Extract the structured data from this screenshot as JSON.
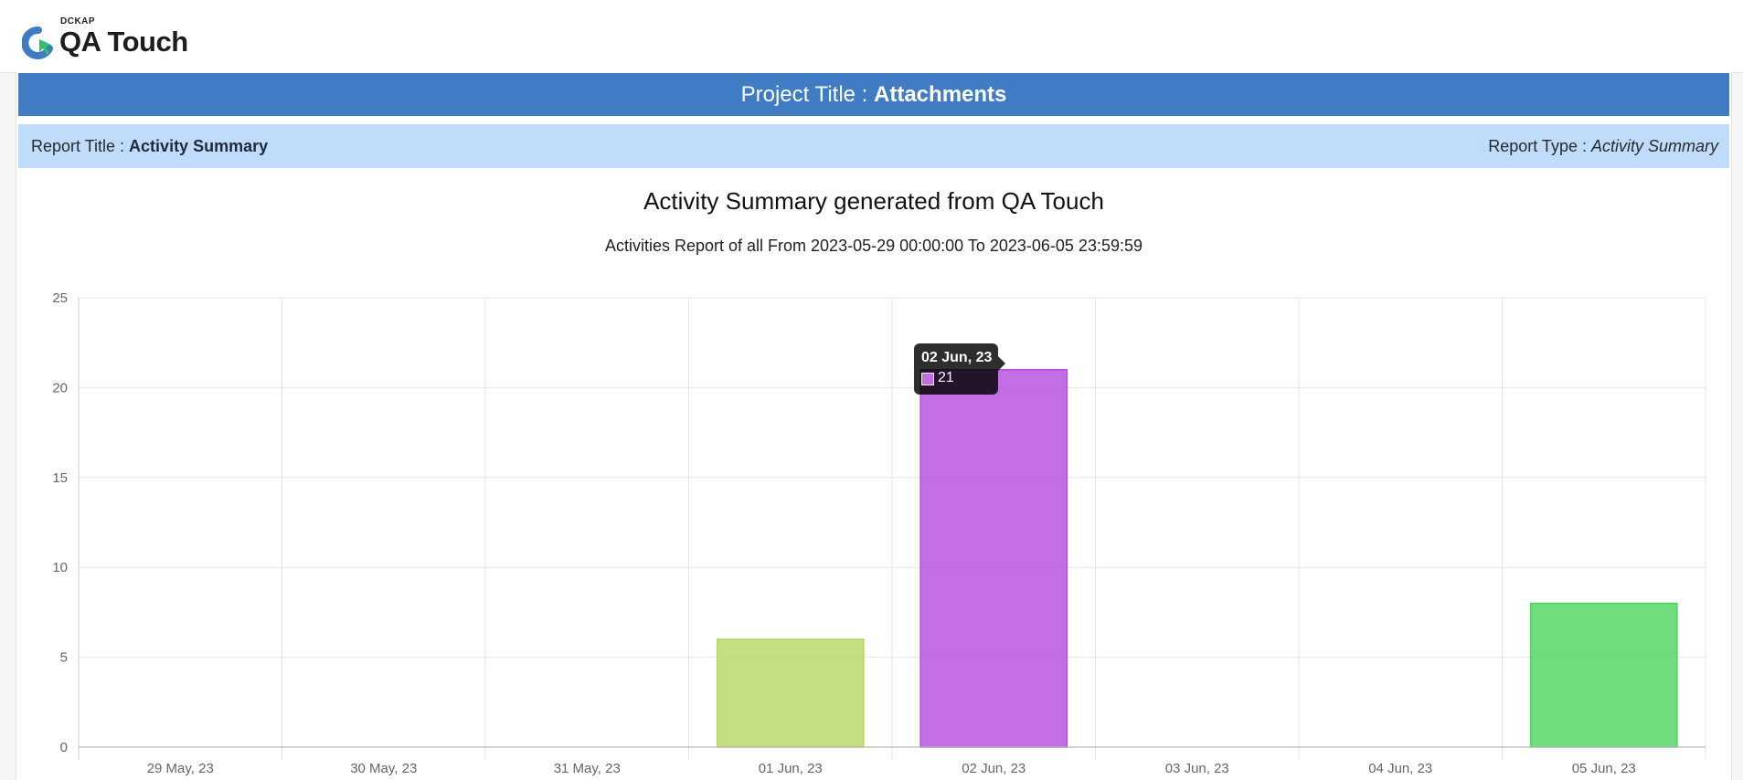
{
  "header": {
    "brand_small": "DCKAP",
    "brand_name": "QA Touch",
    "logo_icon": "qa-touch-logo-icon"
  },
  "project": {
    "label": "Project Title : ",
    "value": "Attachments"
  },
  "report": {
    "title_label": "Report Title : ",
    "title_value": "Activity Summary",
    "type_label": "Report Type : ",
    "type_value": "Activity Summary"
  },
  "colors": {
    "project_bar": "#3f7cc4",
    "report_bar": "#bfdcfb"
  },
  "tooltip": {
    "title": "02 Jun, 23",
    "value": "21"
  },
  "chart_data": {
    "type": "bar",
    "title": "Activity Summary generated from QA Touch",
    "subtitle": "Activities Report of all From 2023-05-29 00:00:00 To 2023-06-05 23:59:59",
    "categories": [
      "29 May, 23",
      "30 May, 23",
      "31 May, 23",
      "01 Jun, 23",
      "02 Jun, 23",
      "03 Jun, 23",
      "04 Jun, 23",
      "05 Jun, 23"
    ],
    "values": [
      0,
      0,
      0,
      6,
      21,
      0,
      0,
      8
    ],
    "colors": [
      "#b5d75f",
      "#b5d75f",
      "#b5d75f",
      "#b5d75f",
      "#b54ae0",
      "#b54ae0",
      "#b54ae0",
      "#4cd35e"
    ],
    "ylim": [
      0,
      25
    ],
    "yticks": [
      0,
      5,
      10,
      15,
      20,
      25
    ],
    "grid": true,
    "legend": "none",
    "xlabel": "",
    "ylabel": ""
  }
}
